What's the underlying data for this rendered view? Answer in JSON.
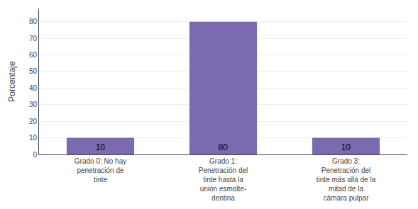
{
  "chart_data": {
    "type": "bar",
    "categories": [
      "Grado 0: No hay\npenetración de\ntinte",
      "Grado 1:\nPenetración del\ntinte hasta la\nunión esmalte-\ndentina",
      "Grado 3:\nPenetración del\ntinte más allá de la\nmitad de la\ncámara pulpar"
    ],
    "values": [
      10,
      80,
      10
    ],
    "color": "#7B6BAE",
    "ylabel": "Porcentaje",
    "ylim": [
      0,
      88
    ],
    "yticks": [
      0,
      10,
      20,
      30,
      40,
      50,
      60,
      70,
      80
    ],
    "grid": true,
    "data_labels": true
  }
}
